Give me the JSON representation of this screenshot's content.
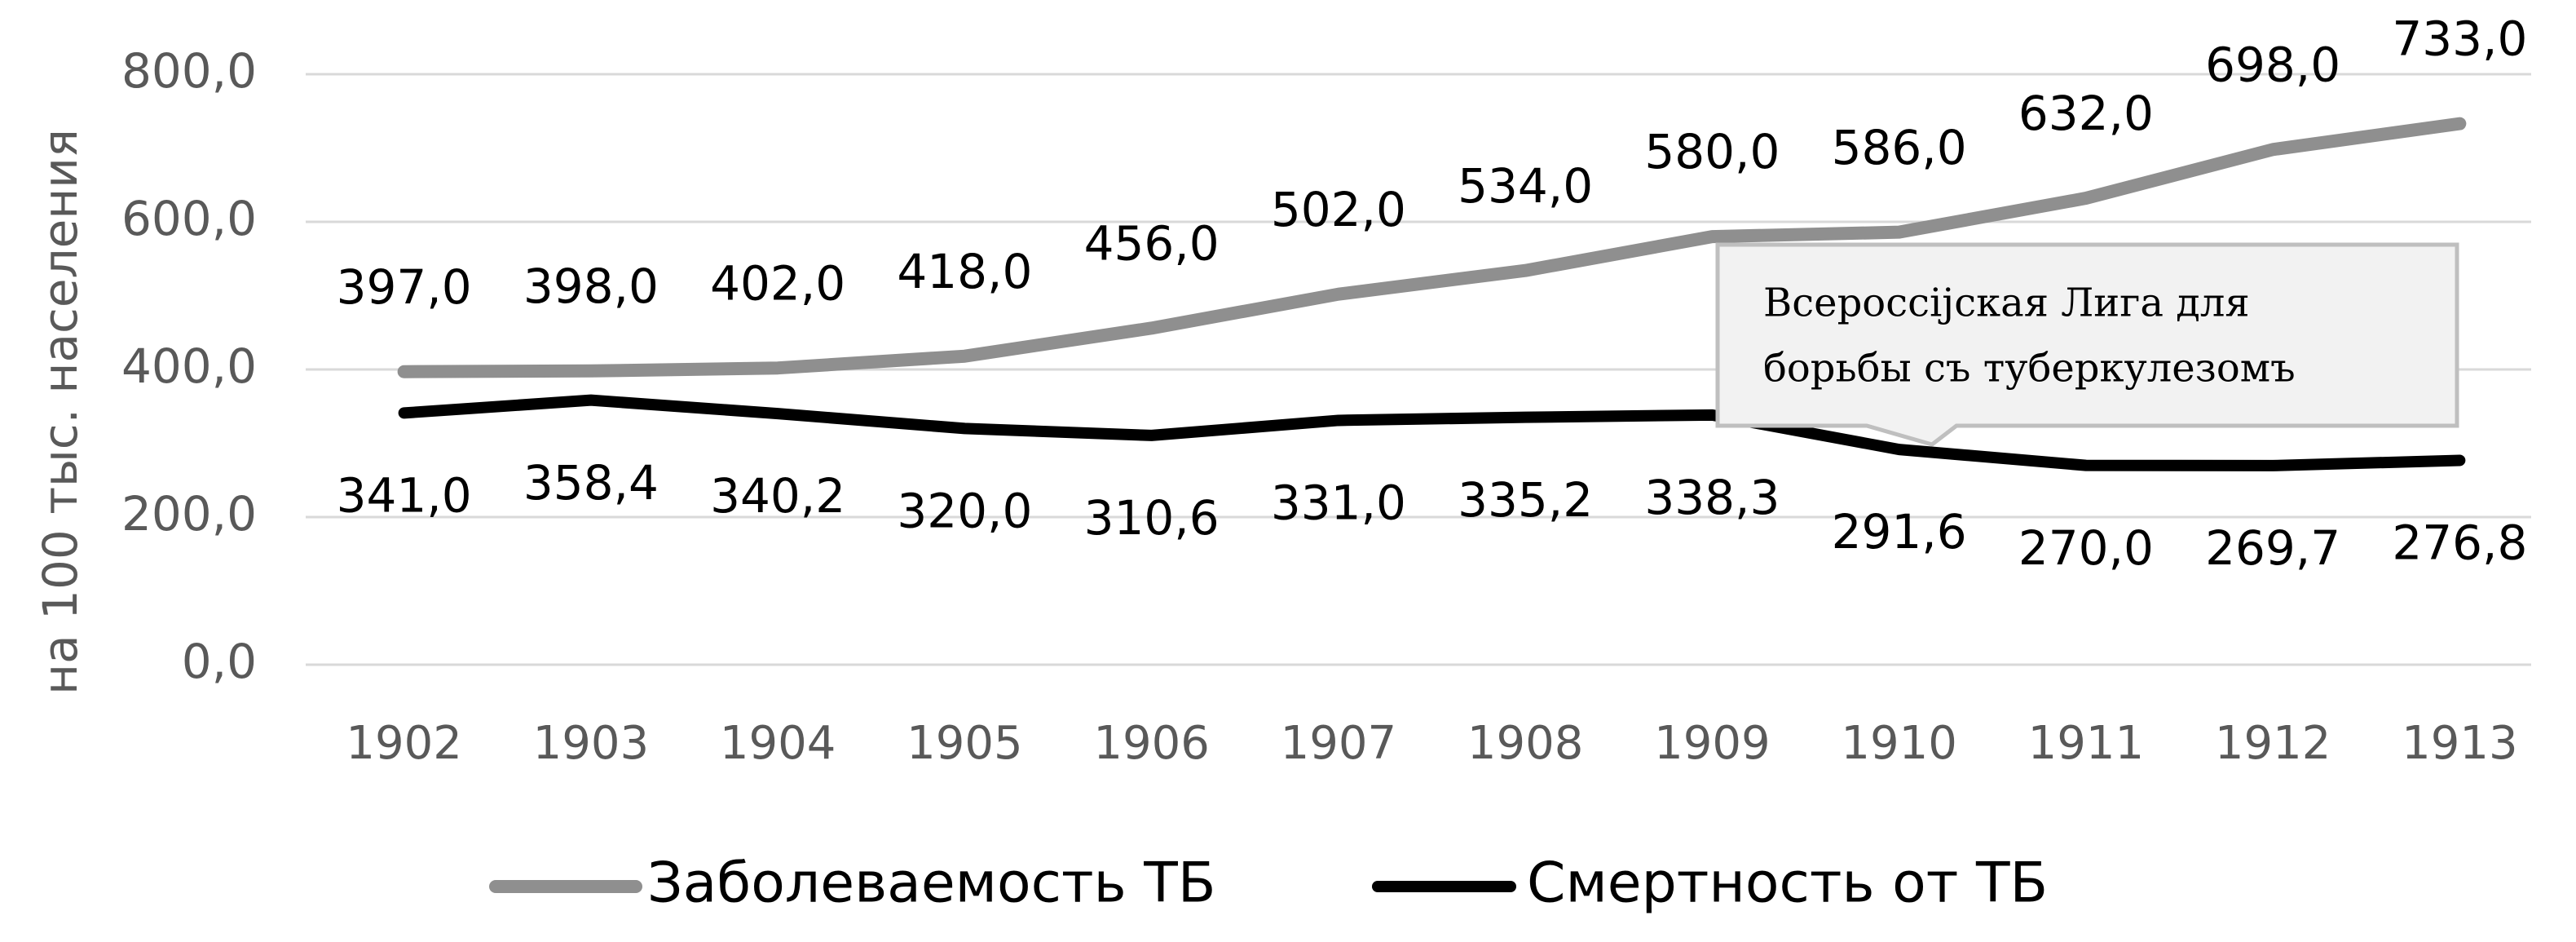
{
  "chart_data": {
    "type": "line",
    "y_axis_label": "на 100 тыс. населения",
    "categories": [
      "1902",
      "1903",
      "1904",
      "1905",
      "1906",
      "1907",
      "1908",
      "1909",
      "1910",
      "1911",
      "1912",
      "1913"
    ],
    "series": [
      {
        "name": "Заболеваемость ТБ",
        "color": "#8f8f8f",
        "values": [
          397,
          398,
          402,
          418,
          456,
          502,
          534,
          580,
          586,
          632,
          698,
          733
        ],
        "value_labels": [
          "397,0",
          "398,0",
          "402,0",
          "418,0",
          "456,0",
          "502,0",
          "534,0",
          "580,0",
          "586,0",
          "632,0",
          "698,0",
          "733,0"
        ]
      },
      {
        "name": "Смертность от ТБ",
        "color": "#000000",
        "values": [
          341,
          358.4,
          340.2,
          320,
          310.6,
          331,
          335.2,
          338.3,
          291.6,
          270,
          269.7,
          276.8
        ],
        "value_labels": [
          "341,0",
          "358,4",
          "340,2",
          "320,0",
          "310,6",
          "331,0",
          "335,2",
          "338,3",
          "291,6",
          "270,0",
          "269,7",
          "276,8"
        ]
      }
    ],
    "ylim": [
      0,
      800
    ],
    "yticks": [
      {
        "value": 0,
        "label": "0,0"
      },
      {
        "value": 200,
        "label": "200,0"
      },
      {
        "value": 400,
        "label": "400,0"
      },
      {
        "value": 600,
        "label": "600,0"
      },
      {
        "value": 800,
        "label": "800,0"
      }
    ],
    "grid": true,
    "legend": "bottom",
    "annotation": [
      "Всероссiјская Лига для",
      "борьбы съ туберкулезомъ"
    ]
  }
}
